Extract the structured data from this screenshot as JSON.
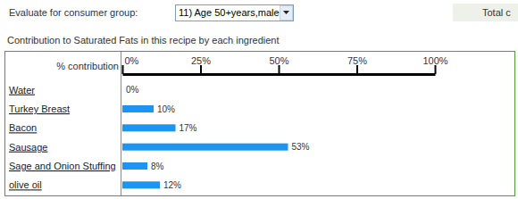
{
  "chart_data": {
    "type": "bar",
    "orientation": "horizontal",
    "title": "Contribution to Saturated Fats in this recipe by each ingredient",
    "xlabel": "% contribution",
    "annotations": [
      "Evaluate for consumer group:",
      "11) Age 50+years,male",
      "Total c"
    ],
    "categories": [
      "Water",
      "Turkey Breast",
      "Bacon",
      "Sausage",
      "Sage and Onion Stuffing",
      "olive oil"
    ],
    "values": [
      0,
      10,
      17,
      53,
      8,
      12
    ],
    "value_labels": [
      "0%",
      "10%",
      "17%",
      "53%",
      "8%",
      "12%"
    ],
    "data_labels": true,
    "color": "#1b95ef",
    "xlim": [
      0,
      100
    ],
    "xticks": [
      {
        "value": 0,
        "label": "0%"
      },
      {
        "value": 25,
        "label": "25%"
      },
      {
        "value": 50,
        "label": "50%"
      },
      {
        "value": 75,
        "label": "75%"
      },
      {
        "value": 100,
        "label": "100%"
      }
    ],
    "grid": false
  }
}
